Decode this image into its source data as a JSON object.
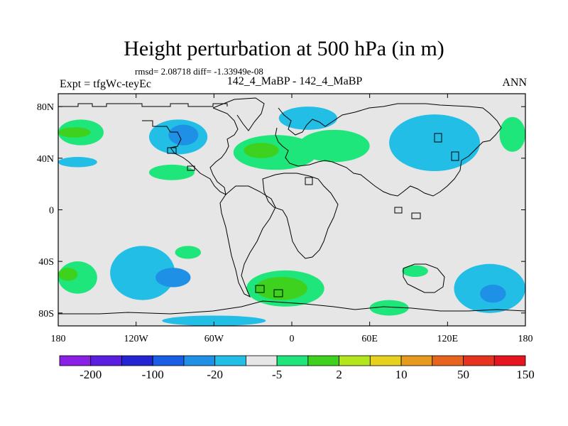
{
  "chart_data": {
    "type": "heatmap",
    "title": "Height perturbation at 500 hPa (in m)",
    "stats": "rmsd= 2.08718 diff= -1.33949e-08",
    "left_label": "Expt = tfgWc-teyEc",
    "center_label": "142_4_MaBP - 142_4_MaBP",
    "right_label": "ANN",
    "xlim": [
      -180,
      180
    ],
    "ylim": [
      -90,
      90
    ],
    "x_ticks": [
      {
        "value": -180,
        "label": "180"
      },
      {
        "value": -120,
        "label": "120W"
      },
      {
        "value": -60,
        "label": "60W"
      },
      {
        "value": 0,
        "label": "0"
      },
      {
        "value": 60,
        "label": "60E"
      },
      {
        "value": 120,
        "label": "120E"
      },
      {
        "value": 180,
        "label": "180"
      }
    ],
    "y_ticks": [
      {
        "value": 80,
        "label": "80N"
      },
      {
        "value": 40,
        "label": "40N"
      },
      {
        "value": 0,
        "label": "0"
      },
      {
        "value": -40,
        "label": "40S"
      },
      {
        "value": -80,
        "label": "80S"
      }
    ],
    "colorbar": {
      "colors": [
        "#8a1fe6",
        "#5a1ee0",
        "#2424d2",
        "#1a5ee6",
        "#1e90e6",
        "#22bee6",
        "#e6e6e6",
        "#1ee67a",
        "#3ed21e",
        "#b4e61e",
        "#e6d21e",
        "#e69a1e",
        "#e6641e",
        "#e6321e",
        "#e6141e"
      ],
      "labels": [
        {
          "boundary": 1,
          "text": "-200"
        },
        {
          "boundary": 3,
          "text": "-100"
        },
        {
          "boundary": 5,
          "text": "-20"
        },
        {
          "boundary": 7,
          "text": "-5"
        },
        {
          "boundary": 9,
          "text": "2"
        },
        {
          "boundary": 11,
          "text": "10"
        },
        {
          "boundary": 13,
          "text": "50"
        },
        {
          "boundary": 15,
          "text": "150"
        }
      ]
    },
    "regions": [
      {
        "name": "green-n-pacific-west",
        "level": "positive",
        "color": "#1ee67a",
        "lon": [
          -180,
          -145
        ],
        "lat": [
          50,
          70
        ]
      },
      {
        "name": "green-n-pacific-core",
        "level": "positive-strong",
        "color": "#3ed21e",
        "lon": [
          -180,
          -155
        ],
        "lat": [
          56,
          64
        ]
      },
      {
        "name": "cyan-n-pacific-south",
        "level": "negative",
        "color": "#22bee6",
        "lon": [
          -180,
          -150
        ],
        "lat": [
          33,
          41
        ]
      },
      {
        "name": "cyan-n-america",
        "level": "negative",
        "color": "#22bee6",
        "lon": [
          -110,
          -65
        ],
        "lat": [
          43,
          70
        ]
      },
      {
        "name": "blue-n-america-core",
        "level": "negative-strong",
        "color": "#1e90e6",
        "lon": [
          -95,
          -72
        ],
        "lat": [
          50,
          66
        ]
      },
      {
        "name": "green-mid-atlantic",
        "level": "positive",
        "color": "#1ee67a",
        "lon": [
          -110,
          -75
        ],
        "lat": [
          23,
          35
        ]
      },
      {
        "name": "green-atlantic-europe",
        "level": "positive",
        "color": "#1ee67a",
        "lon": [
          -45,
          20
        ],
        "lat": [
          31,
          58
        ]
      },
      {
        "name": "green-atlantic-core",
        "level": "positive-strong",
        "color": "#3ed21e",
        "lon": [
          -37,
          -10
        ],
        "lat": [
          40,
          52
        ]
      },
      {
        "name": "green-asia",
        "level": "positive",
        "color": "#1ee67a",
        "lon": [
          5,
          60
        ],
        "lat": [
          37,
          62
        ]
      },
      {
        "name": "cyan-arctic-europe",
        "level": "negative",
        "color": "#22bee6",
        "lon": [
          -10,
          35
        ],
        "lat": [
          62,
          80
        ]
      },
      {
        "name": "cyan-n-asia-pacific",
        "level": "negative",
        "color": "#22bee6",
        "lon": [
          75,
          145
        ],
        "lat": [
          30,
          74
        ]
      },
      {
        "name": "green-ne-pacific",
        "level": "positive",
        "color": "#1ee67a",
        "lon": [
          160,
          180
        ],
        "lat": [
          45,
          72
        ]
      },
      {
        "name": "cyan-s-pacific",
        "level": "negative",
        "color": "#22bee6",
        "lon": [
          -140,
          -90
        ],
        "lat": [
          -70,
          -28
        ]
      },
      {
        "name": "blue-s-pacific-core",
        "level": "negative-strong",
        "color": "#1e90e6",
        "lon": [
          -105,
          -78
        ],
        "lat": [
          -60,
          -45
        ]
      },
      {
        "name": "green-s-pacific-west",
        "level": "positive",
        "color": "#1ee67a",
        "lon": [
          -180,
          -150
        ],
        "lat": [
          -65,
          -40
        ]
      },
      {
        "name": "green-s-pacific-core",
        "level": "positive-strong",
        "color": "#3ed21e",
        "lon": [
          -180,
          -165
        ],
        "lat": [
          -55,
          -45
        ]
      },
      {
        "name": "green-s-atlantic-small",
        "level": "positive",
        "color": "#1ee67a",
        "lon": [
          -90,
          -70
        ],
        "lat": [
          -38,
          -28
        ]
      },
      {
        "name": "green-s-atlantic",
        "level": "positive",
        "color": "#1ee67a",
        "lon": [
          -35,
          25
        ],
        "lat": [
          -75,
          -47
        ]
      },
      {
        "name": "green-s-atlantic-core",
        "level": "positive-strong",
        "color": "#3ed21e",
        "lon": [
          -28,
          12
        ],
        "lat": [
          -70,
          -52
        ]
      },
      {
        "name": "green-s-indian-small",
        "level": "positive",
        "color": "#1ee67a",
        "lon": [
          85,
          105
        ],
        "lat": [
          -52,
          -43
        ]
      },
      {
        "name": "green-s-indian-south",
        "level": "positive",
        "color": "#1ee67a",
        "lon": [
          60,
          90
        ],
        "lat": [
          -82,
          -70
        ]
      },
      {
        "name": "cyan-s-indian-east",
        "level": "negative",
        "color": "#22bee6",
        "lon": [
          125,
          180
        ],
        "lat": [
          -80,
          -42
        ]
      },
      {
        "name": "blue-s-indian-core",
        "level": "negative-strong",
        "color": "#1e90e6",
        "lon": [
          145,
          165
        ],
        "lat": [
          -72,
          -58
        ]
      },
      {
        "name": "cyan-antarctic-strip",
        "level": "negative",
        "color": "#22bee6",
        "lon": [
          -100,
          -20
        ],
        "lat": [
          -90,
          -82
        ]
      }
    ]
  }
}
